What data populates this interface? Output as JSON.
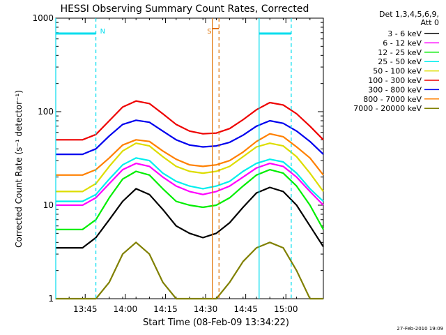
{
  "chart_data": {
    "type": "line",
    "title": "HESSI Observing Summary Count Rates, Corrected",
    "xlabel": "Start Time (08-Feb-09 13:34:22)",
    "ylabel": "Corrected Count Rate (s⁻¹ detector⁻¹)",
    "yscale": "log",
    "ylim": [
      1,
      1000
    ],
    "xlim": [
      "13:34",
      "15:14"
    ],
    "x_ticks": [
      "13:45",
      "14:00",
      "14:15",
      "14:30",
      "14:45",
      "15:00"
    ],
    "y_ticks": [
      "1",
      "10",
      "100",
      "1000"
    ],
    "legend_header": [
      "Det 1,3,4,5,6,9,",
      "Att 0"
    ],
    "legend_position": "right",
    "x_minutes": [
      0,
      5,
      10,
      15,
      20,
      25,
      30,
      35,
      40,
      45,
      50,
      55,
      60,
      65,
      70,
      75,
      80,
      85,
      90,
      95,
      100
    ],
    "series": [
      {
        "name": "3 - 6 keV",
        "color": "#000000",
        "values": [
          3.5,
          3.5,
          3.5,
          4.5,
          7,
          11,
          15,
          13,
          9,
          6,
          5,
          4.5,
          5,
          6.5,
          9.5,
          13.5,
          15.5,
          14,
          10,
          6,
          3.6
        ]
      },
      {
        "name": "6 - 12 keV",
        "color": "#ff00ff",
        "values": [
          10,
          10,
          10,
          12,
          17,
          24,
          28,
          26,
          20,
          16,
          14,
          13,
          14,
          16,
          20,
          25,
          28,
          26,
          20,
          14,
          10
        ]
      },
      {
        "name": "12 - 25 keV",
        "color": "#00ee00",
        "values": [
          5.5,
          5.5,
          5.5,
          7,
          12,
          19,
          23,
          21,
          15,
          11,
          10,
          9.5,
          10,
          12,
          16,
          21,
          24,
          22,
          16,
          10,
          5.5
        ]
      },
      {
        "name": "25 - 50 keV",
        "color": "#00eeee",
        "values": [
          11,
          11,
          11,
          13,
          19,
          27,
          32,
          30,
          22,
          18,
          16,
          15,
          16,
          18,
          23,
          28,
          31,
          29,
          22,
          15,
          11
        ]
      },
      {
        "name": "50 - 100 keV",
        "color": "#dddd00",
        "values": [
          14,
          14,
          14,
          17,
          26,
          38,
          46,
          43,
          33,
          26,
          23,
          22,
          23,
          26,
          33,
          42,
          46,
          43,
          33,
          22,
          14
        ]
      },
      {
        "name": "100 - 300 keV",
        "color": "#ee0000",
        "values": [
          50,
          50,
          50,
          57,
          80,
          112,
          130,
          122,
          95,
          73,
          62,
          58,
          59,
          66,
          82,
          105,
          125,
          118,
          95,
          70,
          50
        ]
      },
      {
        "name": "300 - 800 keV",
        "color": "#0000ee",
        "values": [
          35,
          35,
          35,
          40,
          55,
          73,
          81,
          77,
          62,
          50,
          44,
          42,
          43,
          47,
          56,
          70,
          80,
          75,
          62,
          48,
          35
        ]
      },
      {
        "name": "800 - 7000 keV",
        "color": "#ff8000",
        "values": [
          21,
          21,
          21,
          24,
          32,
          44,
          50,
          48,
          38,
          31,
          27,
          26,
          27,
          30,
          37,
          48,
          58,
          54,
          42,
          32,
          21
        ]
      },
      {
        "name": "7000 - 20000 keV",
        "color": "#808000",
        "values": [
          1,
          1,
          1,
          1,
          1.5,
          3,
          4,
          3,
          1.5,
          1,
          1,
          1,
          1,
          1.5,
          2.5,
          3.5,
          4,
          3.5,
          2,
          1,
          1
        ]
      }
    ],
    "markers": [
      {
        "label": "N",
        "color": "#00ddee",
        "type": "night",
        "solid_minutes": [
          0,
          76
        ],
        "dashed_minutes": [
          15,
          88
        ]
      },
      {
        "label": "S",
        "color": "#e07000",
        "type": "saa",
        "solid_minutes": [
          58.5
        ],
        "dashed_minutes": [
          61
        ]
      }
    ],
    "night_bars": [
      [
        0,
        15
      ],
      [
        76,
        88
      ]
    ]
  },
  "footer": {
    "date": "27-Feb-2010 19:09"
  }
}
